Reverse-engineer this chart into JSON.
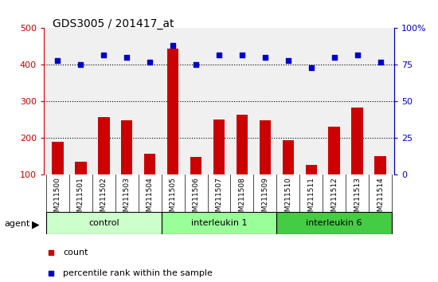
{
  "title": "GDS3005 / 201417_at",
  "samples": [
    "GSM211500",
    "GSM211501",
    "GSM211502",
    "GSM211503",
    "GSM211504",
    "GSM211505",
    "GSM211506",
    "GSM211507",
    "GSM211508",
    "GSM211509",
    "GSM211510",
    "GSM211511",
    "GSM211512",
    "GSM211513",
    "GSM211514"
  ],
  "counts": [
    190,
    135,
    257,
    248,
    157,
    445,
    148,
    250,
    265,
    248,
    195,
    128,
    232,
    283,
    152
  ],
  "percentiles": [
    78,
    75,
    82,
    80,
    77,
    88,
    75,
    82,
    82,
    80,
    78,
    73,
    80,
    82,
    77
  ],
  "bar_color": "#cc0000",
  "dot_color": "#0000cc",
  "groups": [
    {
      "label": "control",
      "start": 0,
      "end": 5,
      "color": "#ccffcc"
    },
    {
      "label": "interleukin 1",
      "start": 5,
      "end": 10,
      "color": "#99ff99"
    },
    {
      "label": "interleukin 6",
      "start": 10,
      "end": 15,
      "color": "#44cc44"
    }
  ],
  "ylim_left": [
    100,
    500
  ],
  "ylim_right": [
    0,
    100
  ],
  "yticks_left": [
    100,
    200,
    300,
    400,
    500
  ],
  "yticks_right": [
    0,
    25,
    50,
    75,
    100
  ],
  "ytick_labels_right": [
    "0",
    "25",
    "50",
    "75",
    "100%"
  ],
  "grid_values": [
    200,
    300,
    400
  ],
  "bg_color": "#ffffff",
  "tick_area_color": "#d0d0d0"
}
